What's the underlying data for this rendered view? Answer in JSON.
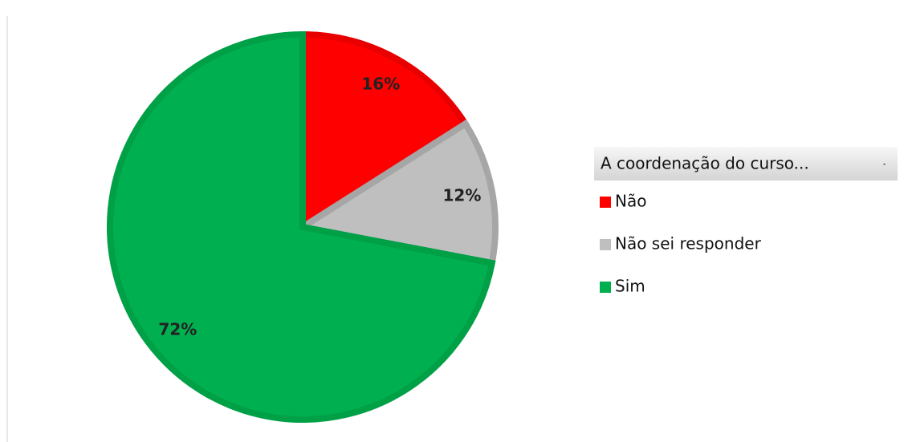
{
  "chart_data": {
    "type": "pie",
    "legend_title": "A coordenação do curso...",
    "categories": [
      "Não",
      "Não sei responder",
      "Sim"
    ],
    "values": [
      16,
      12,
      72
    ],
    "value_labels": [
      "16%",
      "12%",
      "72%"
    ],
    "colors": [
      "#ff0000",
      "#bfbfbf",
      "#00b050"
    ],
    "border_colors": [
      "#e80000",
      "#a6a6a6",
      "#00a046"
    ]
  }
}
